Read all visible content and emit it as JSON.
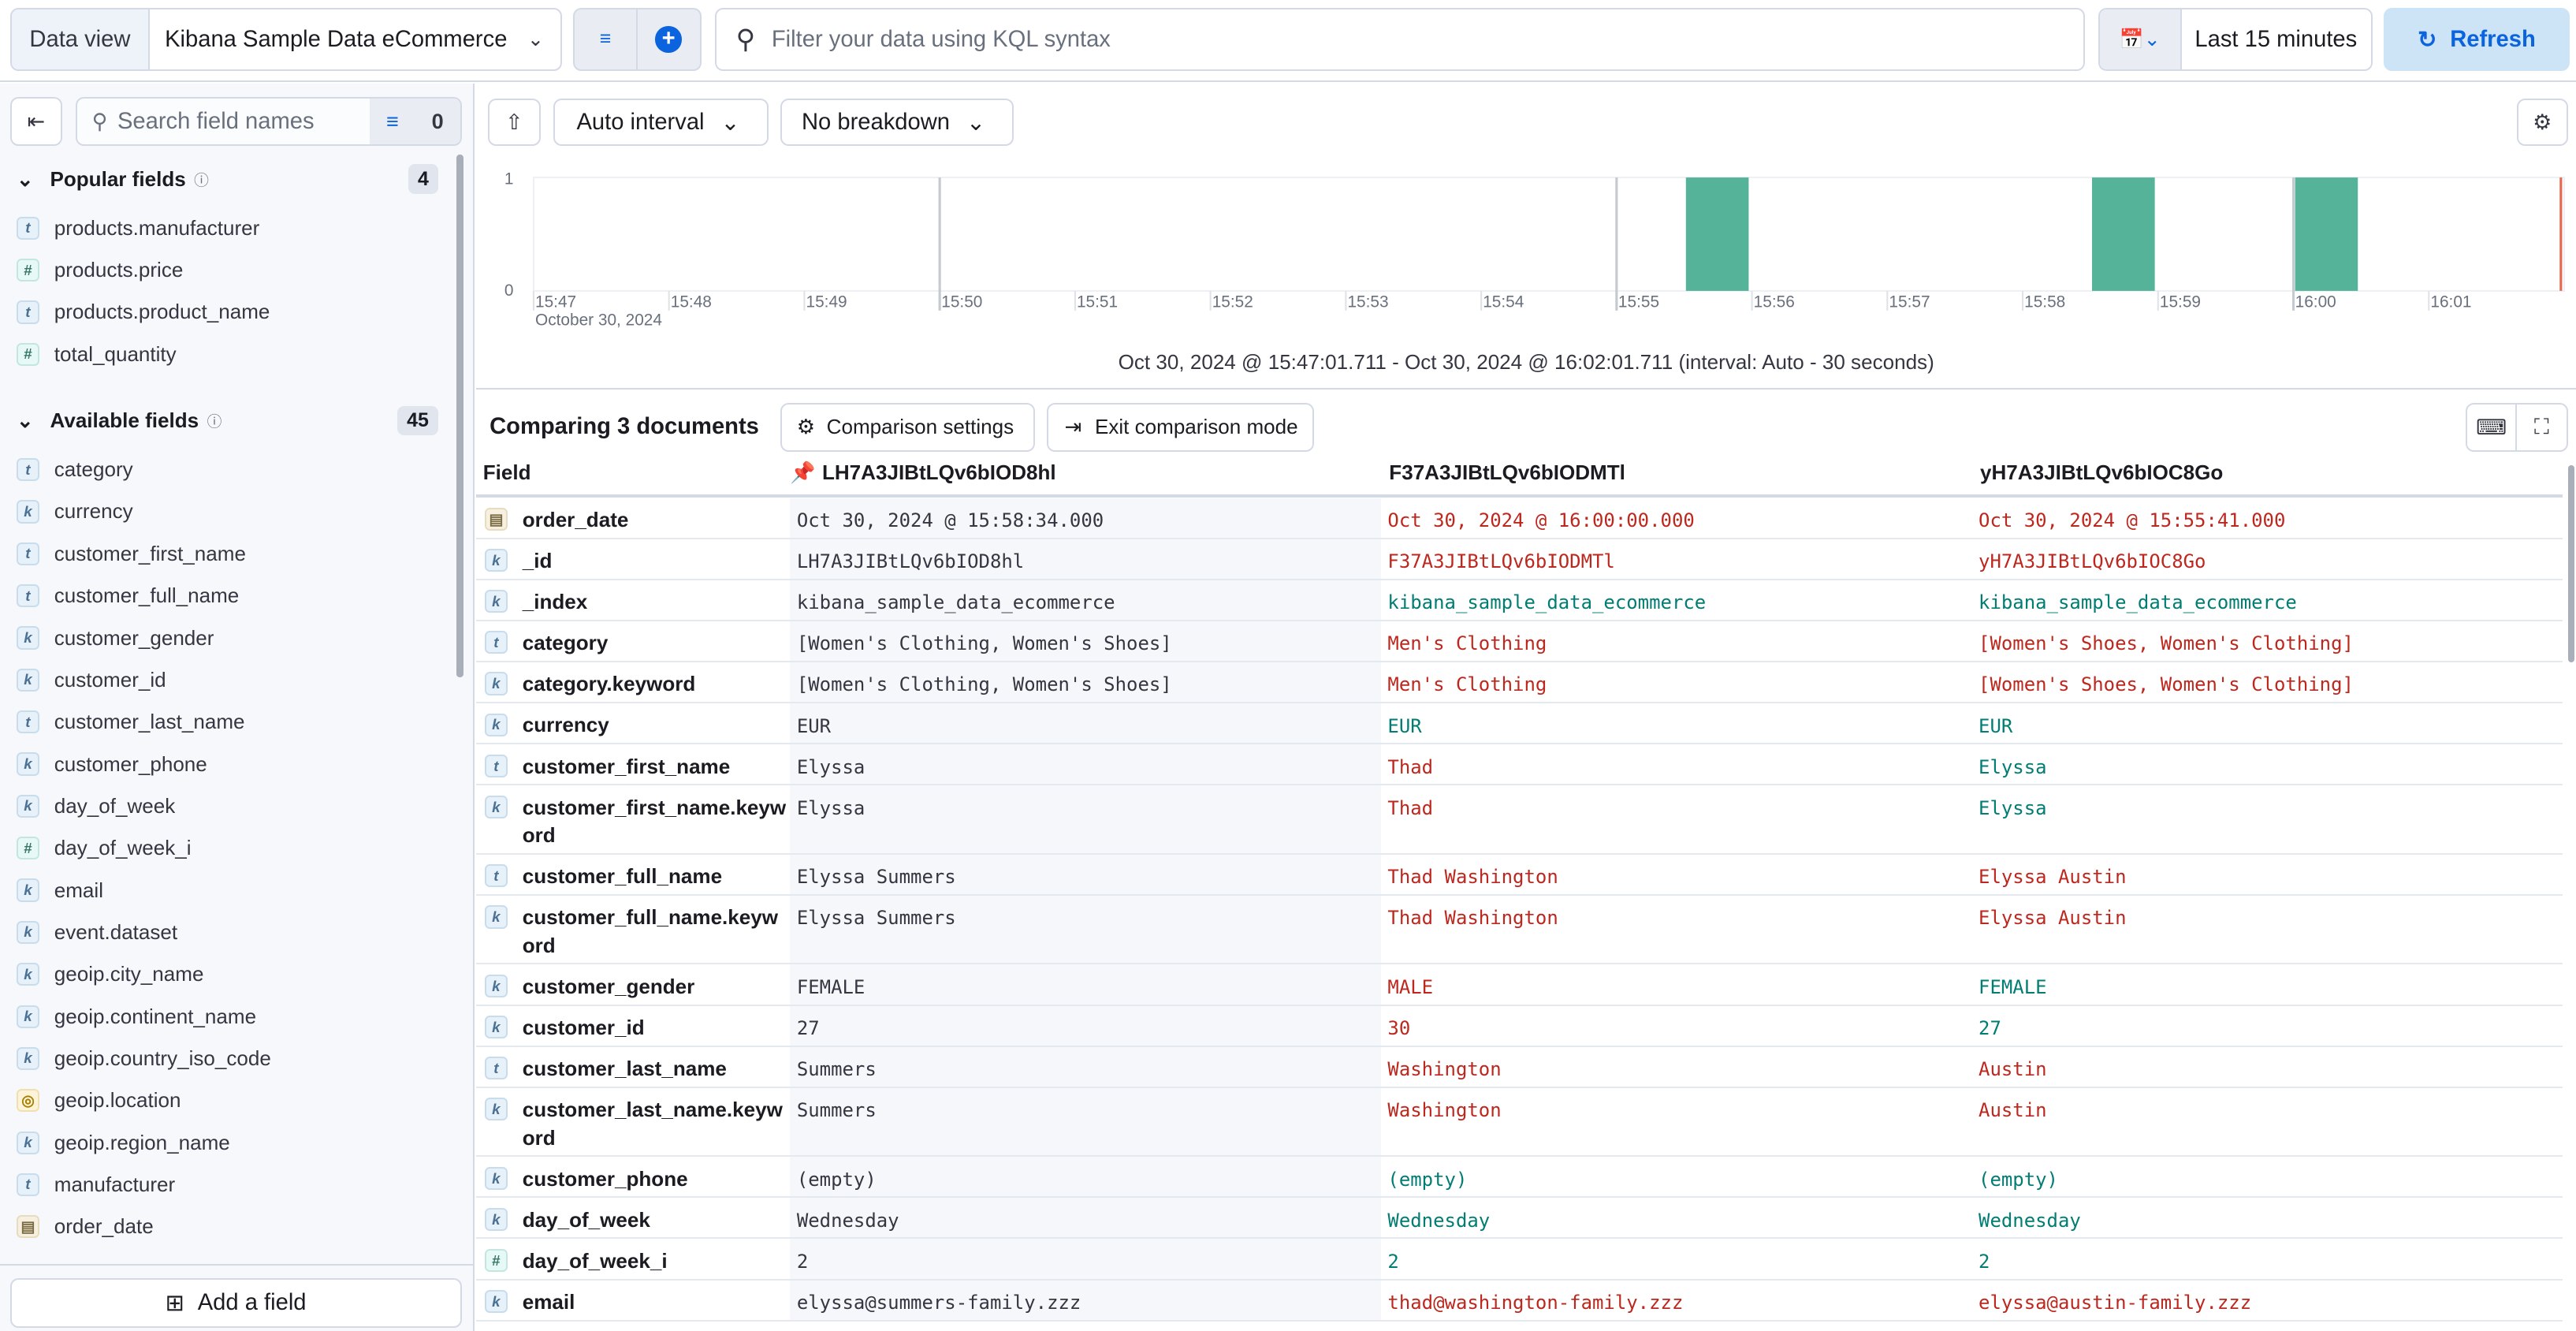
{
  "topbar": {
    "data_view_label": "Data view",
    "data_view_value": "Kibana Sample Data eCommerce",
    "search_placeholder": "Filter your data using KQL syntax",
    "time_range": "Last 15 minutes",
    "refresh_label": "Refresh"
  },
  "sidebar": {
    "search_placeholder": "Search field names",
    "filter_count": "0",
    "popular": {
      "label": "Popular fields",
      "count": "4",
      "items": [
        {
          "type": "t",
          "name": "products.manufacturer"
        },
        {
          "type": "n",
          "name": "products.price"
        },
        {
          "type": "t",
          "name": "products.product_name"
        },
        {
          "type": "n",
          "name": "total_quantity"
        }
      ]
    },
    "available": {
      "label": "Available fields",
      "count": "45",
      "items": [
        {
          "type": "t",
          "name": "category"
        },
        {
          "type": "k",
          "name": "currency"
        },
        {
          "type": "t",
          "name": "customer_first_name"
        },
        {
          "type": "t",
          "name": "customer_full_name"
        },
        {
          "type": "k",
          "name": "customer_gender"
        },
        {
          "type": "k",
          "name": "customer_id"
        },
        {
          "type": "t",
          "name": "customer_last_name"
        },
        {
          "type": "k",
          "name": "customer_phone"
        },
        {
          "type": "k",
          "name": "day_of_week"
        },
        {
          "type": "n",
          "name": "day_of_week_i"
        },
        {
          "type": "k",
          "name": "email"
        },
        {
          "type": "k",
          "name": "event.dataset"
        },
        {
          "type": "k",
          "name": "geoip.city_name"
        },
        {
          "type": "k",
          "name": "geoip.continent_name"
        },
        {
          "type": "k",
          "name": "geoip.country_iso_code"
        },
        {
          "type": "g",
          "name": "geoip.location"
        },
        {
          "type": "k",
          "name": "geoip.region_name"
        },
        {
          "type": "t",
          "name": "manufacturer"
        },
        {
          "type": "d",
          "name": "order_date"
        }
      ]
    },
    "add_field_label": "Add a field"
  },
  "chart_controls": {
    "interval": "Auto interval",
    "breakdown": "No breakdown"
  },
  "chart_data": {
    "type": "bar",
    "y_ticks": [
      "0",
      "1"
    ],
    "ylim": [
      0,
      1
    ],
    "x_ticks": [
      "15:47",
      "15:48",
      "15:49",
      "15:50",
      "15:51",
      "15:52",
      "15:53",
      "15:54",
      "15:55",
      "15:56",
      "15:57",
      "15:58",
      "15:59",
      "16:00",
      "16:01"
    ],
    "x_sublabel": "October 30, 2024",
    "interval": "30 seconds",
    "bars": [
      {
        "start": "15:55:30",
        "value": 1
      },
      {
        "start": "15:58:30",
        "value": 1
      },
      {
        "start": "16:00:00",
        "value": 1
      }
    ],
    "color": "#54b399",
    "caption": "Oct 30, 2024 @ 15:47:01.711 - Oct 30, 2024 @ 16:02:01.711 (interval: Auto - 30 seconds)"
  },
  "comparison": {
    "title": "Comparing 3 documents",
    "settings_label": "Comparison settings",
    "exit_label": "Exit comparison mode",
    "field_header": "Field",
    "docs": [
      "LH7A3JIBtLQv6bIOD8hl",
      "F37A3JIBtLQv6bIODMTl",
      "yH7A3JIBtLQv6bIOC8Go"
    ],
    "rows": [
      {
        "type": "d",
        "field": "order_date",
        "values": [
          "Oct 30, 2024 @ 15:58:34.000",
          "Oct 30, 2024 @ 16:00:00.000",
          "Oct 30, 2024 @ 15:55:41.000"
        ],
        "diff": [
          true,
          true
        ]
      },
      {
        "type": "k",
        "field": "_id",
        "values": [
          "LH7A3JIBtLQv6bIOD8hl",
          "F37A3JIBtLQv6bIODMTl",
          "yH7A3JIBtLQv6bIOC8Go"
        ],
        "diff": [
          true,
          true
        ]
      },
      {
        "type": "k",
        "field": "_index",
        "values": [
          "kibana_sample_data_ecommerce",
          "kibana_sample_data_ecommerce",
          "kibana_sample_data_ecommerce"
        ],
        "diff": [
          false,
          false
        ]
      },
      {
        "type": "t",
        "field": "category",
        "values": [
          "[Women's Clothing, Women's Shoes]",
          "Men's Clothing",
          "[Women's Shoes, Women's Clothing]"
        ],
        "diff": [
          true,
          true
        ]
      },
      {
        "type": "k",
        "field": "category.keyword",
        "values": [
          "[Women's Clothing, Women's Shoes]",
          "Men's Clothing",
          "[Women's Shoes, Women's Clothing]"
        ],
        "diff": [
          true,
          true
        ]
      },
      {
        "type": "k",
        "field": "currency",
        "values": [
          "EUR",
          "EUR",
          "EUR"
        ],
        "diff": [
          false,
          false
        ]
      },
      {
        "type": "t",
        "field": "customer_first_name",
        "values": [
          "Elyssa",
          "Thad",
          "Elyssa"
        ],
        "diff": [
          true,
          false
        ]
      },
      {
        "type": "k",
        "field": "customer_first_name.keyword",
        "values": [
          "Elyssa",
          "Thad",
          "Elyssa"
        ],
        "diff": [
          true,
          false
        ]
      },
      {
        "type": "t",
        "field": "customer_full_name",
        "values": [
          "Elyssa Summers",
          "Thad Washington",
          "Elyssa Austin"
        ],
        "diff": [
          true,
          true
        ]
      },
      {
        "type": "k",
        "field": "customer_full_name.keyword",
        "values": [
          "Elyssa Summers",
          "Thad Washington",
          "Elyssa Austin"
        ],
        "diff": [
          true,
          true
        ]
      },
      {
        "type": "k",
        "field": "customer_gender",
        "values": [
          "FEMALE",
          "MALE",
          "FEMALE"
        ],
        "diff": [
          true,
          false
        ]
      },
      {
        "type": "k",
        "field": "customer_id",
        "values": [
          "27",
          "30",
          "27"
        ],
        "diff": [
          true,
          false
        ]
      },
      {
        "type": "t",
        "field": "customer_last_name",
        "values": [
          "Summers",
          "Washington",
          "Austin"
        ],
        "diff": [
          true,
          true
        ]
      },
      {
        "type": "k",
        "field": "customer_last_name.keyword",
        "values": [
          "Summers",
          "Washington",
          "Austin"
        ],
        "diff": [
          true,
          true
        ]
      },
      {
        "type": "k",
        "field": "customer_phone",
        "values": [
          "(empty)",
          "(empty)",
          "(empty)"
        ],
        "diff": [
          false,
          false
        ]
      },
      {
        "type": "k",
        "field": "day_of_week",
        "values": [
          "Wednesday",
          "Wednesday",
          "Wednesday"
        ],
        "diff": [
          false,
          false
        ]
      },
      {
        "type": "n",
        "field": "day_of_week_i",
        "values": [
          "2",
          "2",
          "2"
        ],
        "diff": [
          false,
          false
        ]
      },
      {
        "type": "k",
        "field": "email",
        "values": [
          "elyssa@summers-family.zzz",
          "thad@washington-family.zzz",
          "elyssa@austin-family.zzz"
        ],
        "diff": [
          true,
          true
        ]
      }
    ]
  },
  "colors": {
    "accent": "#0b64dd",
    "diff": "#bd271e",
    "same": "#017d73",
    "bar": "#54b399"
  }
}
